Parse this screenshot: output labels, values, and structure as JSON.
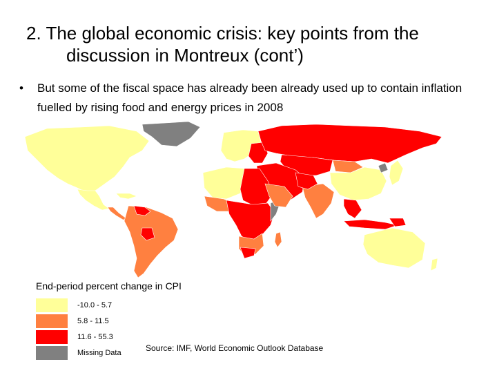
{
  "slide": {
    "title_line1": "2. The global economic crisis: key points from the",
    "title_line2": "discussion in Montreux (cont’)",
    "bullet_symbol": "•",
    "bullet_text": "But some of the fiscal space has already been already used up to contain inflation fuelled by rising food and energy prices in 2008",
    "source": "Source: IMF, World Economic Outlook Database"
  },
  "map": {
    "legend_title": "End-period percent change in CPI",
    "categories": [
      {
        "label": "-10.0 - 5.7",
        "color": "#ffff99"
      },
      {
        "label": "5.8 - 11.5",
        "color": "#ff8040"
      },
      {
        "label": "11.6 - 55.3",
        "color": "#ff0000"
      },
      {
        "label": "Missing Data",
        "color": "#808080"
      }
    ]
  }
}
